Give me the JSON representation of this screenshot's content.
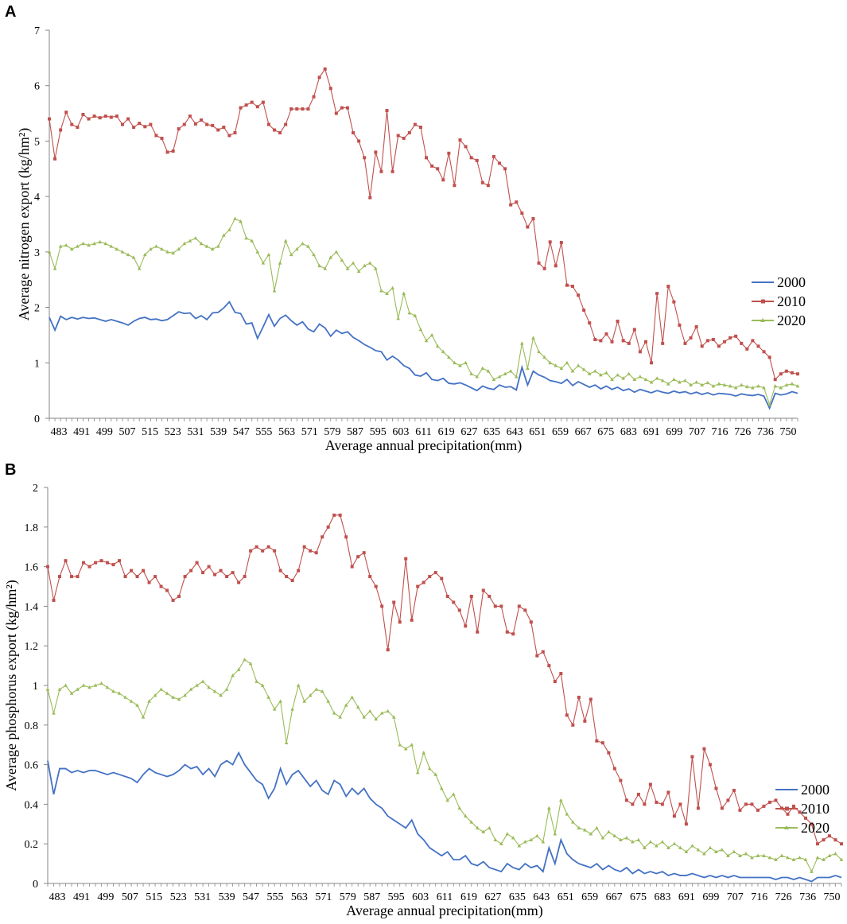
{
  "panels": {
    "A": {
      "letter": "A"
    },
    "B": {
      "letter": "B"
    }
  },
  "chart_data": [
    {
      "type": "line",
      "panel": "A",
      "xlabel": "Average  annual precipitation(mm)",
      "ylabel": "Average nitrogen export (kg/hm²)",
      "ylim": [
        0,
        7
      ],
      "yticks": [
        "0",
        "1",
        "2",
        "3",
        "4",
        "5",
        "6",
        "7"
      ],
      "x_tick_labels": [
        "483",
        "491",
        "499",
        "507",
        "515",
        "523",
        "531",
        "539",
        "547",
        "555",
        "563",
        "571",
        "579",
        "587",
        "595",
        "603",
        "611",
        "619",
        "627",
        "635",
        "643",
        "651",
        "659",
        "667",
        "675",
        "683",
        "691",
        "699",
        "707",
        "716",
        "726",
        "736",
        "750"
      ],
      "legend": [
        "2000",
        "2010",
        "2020"
      ],
      "legend_position": "right",
      "series": [
        {
          "name": "2000",
          "color": "#4472C4",
          "marker": "none",
          "values": [
            1.82,
            1.59,
            1.84,
            1.78,
            1.82,
            1.79,
            1.82,
            1.8,
            1.81,
            1.78,
            1.75,
            1.78,
            1.75,
            1.72,
            1.68,
            1.75,
            1.8,
            1.82,
            1.78,
            1.79,
            1.76,
            1.78,
            1.85,
            1.92,
            1.89,
            1.9,
            1.8,
            1.85,
            1.78,
            1.9,
            1.91,
            1.99,
            2.1,
            1.91,
            1.89,
            1.7,
            1.72,
            1.44,
            1.65,
            1.87,
            1.66,
            1.8,
            1.86,
            1.76,
            1.68,
            1.74,
            1.61,
            1.56,
            1.7,
            1.63,
            1.48,
            1.59,
            1.53,
            1.56,
            1.46,
            1.4,
            1.33,
            1.28,
            1.22,
            1.2,
            1.05,
            1.12,
            1.05,
            0.95,
            0.9,
            0.78,
            0.76,
            0.82,
            0.7,
            0.68,
            0.72,
            0.63,
            0.62,
            0.64,
            0.6,
            0.55,
            0.5,
            0.58,
            0.54,
            0.52,
            0.6,
            0.56,
            0.57,
            0.51,
            0.92,
            0.6,
            0.85,
            0.78,
            0.74,
            0.68,
            0.66,
            0.63,
            0.7,
            0.59,
            0.66,
            0.61,
            0.56,
            0.6,
            0.53,
            0.58,
            0.52,
            0.56,
            0.5,
            0.53,
            0.47,
            0.52,
            0.49,
            0.46,
            0.5,
            0.47,
            0.45,
            0.49,
            0.46,
            0.48,
            0.44,
            0.47,
            0.43,
            0.46,
            0.42,
            0.45,
            0.44,
            0.43,
            0.4,
            0.44,
            0.42,
            0.41,
            0.43,
            0.4,
            0.18,
            0.45,
            0.42,
            0.44,
            0.48,
            0.45
          ]
        },
        {
          "name": "2010",
          "color": "#C0504D",
          "marker": "square",
          "values": [
            5.4,
            4.68,
            5.2,
            5.52,
            5.3,
            5.25,
            5.48,
            5.4,
            5.45,
            5.42,
            5.45,
            5.43,
            5.45,
            5.3,
            5.4,
            5.25,
            5.32,
            5.26,
            5.3,
            5.1,
            5.05,
            4.8,
            4.82,
            5.22,
            5.3,
            5.45,
            5.31,
            5.38,
            5.3,
            5.28,
            5.2,
            5.25,
            5.1,
            5.15,
            5.6,
            5.65,
            5.7,
            5.62,
            5.7,
            5.3,
            5.2,
            5.15,
            5.3,
            5.58,
            5.58,
            5.58,
            5.58,
            5.8,
            6.15,
            6.3,
            5.95,
            5.5,
            5.6,
            5.6,
            5.15,
            5.0,
            4.7,
            3.98,
            4.8,
            4.45,
            5.55,
            4.45,
            5.1,
            5.05,
            5.15,
            5.3,
            5.25,
            4.7,
            4.55,
            4.5,
            4.3,
            4.78,
            4.2,
            5.02,
            4.9,
            4.7,
            4.65,
            4.25,
            4.2,
            4.72,
            4.6,
            4.5,
            3.85,
            3.9,
            3.7,
            3.45,
            3.6,
            2.8,
            2.7,
            3.18,
            2.75,
            3.17,
            2.4,
            2.38,
            2.22,
            1.95,
            1.72,
            1.42,
            1.4,
            1.52,
            1.38,
            1.75,
            1.4,
            1.35,
            1.6,
            1.2,
            1.38,
            1.0,
            2.25,
            1.35,
            2.38,
            2.1,
            1.68,
            1.35,
            1.45,
            1.65,
            1.3,
            1.4,
            1.42,
            1.3,
            1.38,
            1.45,
            1.48,
            1.35,
            1.25,
            1.4,
            1.3,
            1.2,
            1.1,
            0.7,
            0.8,
            0.85,
            0.82,
            0.8
          ]
        },
        {
          "name": "2020",
          "color": "#9BBB59",
          "marker": "triangle",
          "values": [
            3.0,
            2.7,
            3.1,
            3.12,
            3.05,
            3.1,
            3.15,
            3.12,
            3.15,
            3.18,
            3.15,
            3.1,
            3.05,
            3.0,
            2.95,
            2.9,
            2.7,
            2.95,
            3.05,
            3.1,
            3.05,
            3.0,
            2.98,
            3.05,
            3.15,
            3.2,
            3.25,
            3.15,
            3.1,
            3.05,
            3.1,
            3.3,
            3.4,
            3.6,
            3.55,
            3.25,
            3.2,
            3.0,
            2.8,
            2.95,
            2.3,
            2.8,
            3.2,
            2.95,
            3.05,
            3.15,
            3.1,
            2.95,
            2.75,
            2.7,
            2.9,
            3.0,
            2.85,
            2.7,
            2.8,
            2.65,
            2.75,
            2.8,
            2.7,
            2.3,
            2.25,
            2.35,
            1.8,
            2.25,
            1.9,
            1.85,
            1.6,
            1.4,
            1.5,
            1.3,
            1.2,
            1.1,
            1.0,
            0.95,
            1.0,
            0.8,
            0.75,
            0.9,
            0.85,
            0.7,
            0.75,
            0.8,
            0.85,
            0.75,
            1.35,
            0.9,
            1.45,
            1.2,
            1.1,
            1.0,
            0.95,
            0.9,
            1.0,
            0.85,
            0.95,
            0.88,
            0.8,
            0.85,
            0.78,
            0.82,
            0.7,
            0.78,
            0.72,
            0.8,
            0.7,
            0.75,
            0.7,
            0.65,
            0.72,
            0.68,
            0.62,
            0.7,
            0.65,
            0.68,
            0.6,
            0.65,
            0.6,
            0.64,
            0.58,
            0.62,
            0.6,
            0.58,
            0.55,
            0.6,
            0.57,
            0.55,
            0.58,
            0.55,
            0.25,
            0.58,
            0.55,
            0.6,
            0.62,
            0.58
          ]
        }
      ]
    },
    {
      "type": "line",
      "panel": "B",
      "xlabel": "Average  annual precipitation(mm)",
      "ylabel": "Average phosphorus export (kg/hm²)",
      "ylim": [
        0,
        2
      ],
      "yticks": [
        "0",
        "0.2",
        "0.4",
        "0.6",
        "0.8",
        "1",
        "1.2",
        "1.4",
        "1.6",
        "1.8",
        "2"
      ],
      "x_tick_labels": [
        "483",
        "491",
        "499",
        "507",
        "515",
        "523",
        "531",
        "539",
        "547",
        "555",
        "563",
        "571",
        "579",
        "587",
        "595",
        "603",
        "611",
        "619",
        "627",
        "635",
        "643",
        "651",
        "659",
        "667",
        "675",
        "683",
        "691",
        "699",
        "707",
        "716",
        "726",
        "736",
        "750"
      ],
      "legend": [
        "2000",
        "2010",
        "2020"
      ],
      "legend_position": "bottom-right",
      "series": [
        {
          "name": "2000",
          "color": "#4472C4",
          "marker": "none",
          "values": [
            0.62,
            0.45,
            0.58,
            0.58,
            0.56,
            0.57,
            0.56,
            0.57,
            0.57,
            0.56,
            0.55,
            0.56,
            0.55,
            0.54,
            0.53,
            0.51,
            0.55,
            0.58,
            0.56,
            0.55,
            0.54,
            0.55,
            0.57,
            0.6,
            0.58,
            0.59,
            0.55,
            0.58,
            0.54,
            0.6,
            0.62,
            0.6,
            0.66,
            0.6,
            0.56,
            0.52,
            0.5,
            0.43,
            0.48,
            0.58,
            0.5,
            0.55,
            0.57,
            0.53,
            0.49,
            0.52,
            0.47,
            0.45,
            0.52,
            0.5,
            0.44,
            0.48,
            0.45,
            0.48,
            0.43,
            0.4,
            0.38,
            0.34,
            0.32,
            0.3,
            0.28,
            0.32,
            0.25,
            0.22,
            0.18,
            0.16,
            0.14,
            0.16,
            0.12,
            0.12,
            0.14,
            0.1,
            0.09,
            0.11,
            0.08,
            0.07,
            0.06,
            0.1,
            0.08,
            0.07,
            0.1,
            0.08,
            0.09,
            0.06,
            0.18,
            0.1,
            0.22,
            0.15,
            0.12,
            0.1,
            0.09,
            0.08,
            0.1,
            0.07,
            0.09,
            0.07,
            0.06,
            0.08,
            0.05,
            0.07,
            0.05,
            0.06,
            0.05,
            0.06,
            0.04,
            0.05,
            0.04,
            0.04,
            0.05,
            0.04,
            0.03,
            0.04,
            0.03,
            0.04,
            0.03,
            0.04,
            0.03,
            0.03,
            0.03,
            0.03,
            0.03,
            0.03,
            0.02,
            0.03,
            0.03,
            0.02,
            0.03,
            0.02,
            0.01,
            0.03,
            0.03,
            0.03,
            0.04,
            0.03
          ]
        },
        {
          "name": "2010",
          "color": "#C0504D",
          "marker": "square",
          "values": [
            1.6,
            1.43,
            1.55,
            1.63,
            1.55,
            1.55,
            1.62,
            1.6,
            1.62,
            1.63,
            1.62,
            1.61,
            1.63,
            1.55,
            1.58,
            1.55,
            1.58,
            1.52,
            1.55,
            1.5,
            1.48,
            1.43,
            1.45,
            1.55,
            1.58,
            1.62,
            1.57,
            1.6,
            1.56,
            1.58,
            1.55,
            1.57,
            1.52,
            1.55,
            1.68,
            1.7,
            1.68,
            1.7,
            1.68,
            1.58,
            1.55,
            1.53,
            1.58,
            1.7,
            1.68,
            1.67,
            1.75,
            1.8,
            1.86,
            1.86,
            1.75,
            1.6,
            1.65,
            1.67,
            1.55,
            1.5,
            1.4,
            1.18,
            1.42,
            1.32,
            1.64,
            1.33,
            1.5,
            1.52,
            1.55,
            1.57,
            1.54,
            1.45,
            1.42,
            1.38,
            1.3,
            1.45,
            1.27,
            1.48,
            1.45,
            1.4,
            1.4,
            1.27,
            1.26,
            1.4,
            1.38,
            1.32,
            1.15,
            1.17,
            1.1,
            1.02,
            1.06,
            0.85,
            0.8,
            0.94,
            0.82,
            0.93,
            0.72,
            0.71,
            0.66,
            0.58,
            0.52,
            0.42,
            0.4,
            0.45,
            0.4,
            0.5,
            0.41,
            0.4,
            0.46,
            0.34,
            0.4,
            0.3,
            0.64,
            0.38,
            0.68,
            0.6,
            0.48,
            0.38,
            0.42,
            0.47,
            0.37,
            0.4,
            0.4,
            0.37,
            0.39,
            0.41,
            0.42,
            0.38,
            0.35,
            0.39,
            0.36,
            0.33,
            0.3,
            0.2,
            0.22,
            0.24,
            0.22,
            0.2
          ]
        },
        {
          "name": "2020",
          "color": "#9BBB59",
          "marker": "triangle",
          "values": [
            0.98,
            0.86,
            0.98,
            1.0,
            0.96,
            0.98,
            1.0,
            0.99,
            1.0,
            1.01,
            0.99,
            0.97,
            0.96,
            0.94,
            0.92,
            0.9,
            0.84,
            0.92,
            0.95,
            0.98,
            0.96,
            0.94,
            0.93,
            0.95,
            0.98,
            1.0,
            1.02,
            0.99,
            0.97,
            0.95,
            0.98,
            1.05,
            1.08,
            1.13,
            1.11,
            1.02,
            1.0,
            0.94,
            0.88,
            0.92,
            0.71,
            0.88,
            1.0,
            0.92,
            0.95,
            0.98,
            0.97,
            0.92,
            0.86,
            0.84,
            0.9,
            0.94,
            0.89,
            0.84,
            0.87,
            0.83,
            0.86,
            0.87,
            0.84,
            0.7,
            0.68,
            0.7,
            0.56,
            0.66,
            0.58,
            0.55,
            0.48,
            0.42,
            0.45,
            0.38,
            0.34,
            0.31,
            0.28,
            0.26,
            0.28,
            0.22,
            0.2,
            0.25,
            0.23,
            0.19,
            0.21,
            0.22,
            0.24,
            0.21,
            0.38,
            0.25,
            0.42,
            0.35,
            0.31,
            0.28,
            0.27,
            0.25,
            0.28,
            0.23,
            0.26,
            0.24,
            0.22,
            0.23,
            0.21,
            0.22,
            0.18,
            0.21,
            0.19,
            0.21,
            0.18,
            0.2,
            0.18,
            0.16,
            0.19,
            0.17,
            0.15,
            0.18,
            0.16,
            0.17,
            0.14,
            0.16,
            0.14,
            0.15,
            0.13,
            0.14,
            0.14,
            0.13,
            0.12,
            0.14,
            0.13,
            0.12,
            0.13,
            0.12,
            0.06,
            0.13,
            0.12,
            0.14,
            0.15,
            0.12
          ]
        }
      ]
    }
  ]
}
